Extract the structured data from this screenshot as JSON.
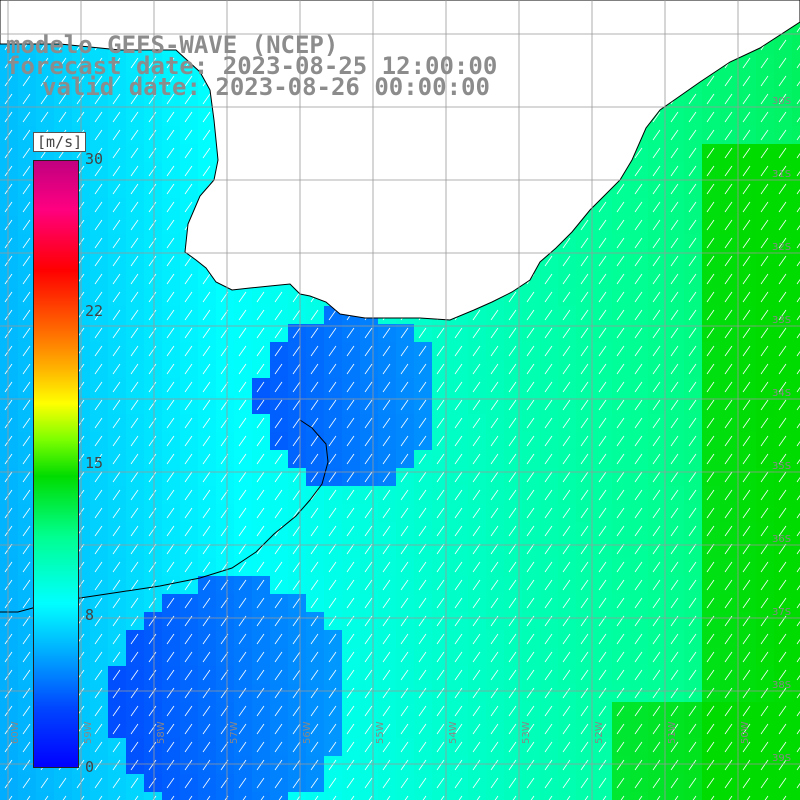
{
  "title": {
    "line1": "modelo GEFS-WAVE (NCEP)",
    "line2": "forecast date: 2023-08-25 12:00:00",
    "line3": "valid date: 2023-08-26 00:00:00"
  },
  "colorbar": {
    "unit": "[m/s]",
    "min": 0,
    "max": 30,
    "ticks": [
      "30",
      "22",
      "15",
      "8",
      "0"
    ],
    "tick_values": [
      30,
      22,
      15,
      8,
      0
    ],
    "colors": {
      "low": "#0000ff",
      "mid_low": "#00ffff",
      "mid": "#00dc00",
      "mid_high": "#ffff00",
      "high": "#ff0000",
      "max": "#c00080"
    }
  },
  "map": {
    "lat_labels": [
      "30S",
      "31S",
      "32S",
      "33S",
      "34S",
      "35S",
      "36S",
      "37S",
      "38S",
      "39S",
      "40S"
    ],
    "lon_labels": [
      "60W",
      "59W",
      "58W",
      "57W",
      "56W",
      "55W",
      "54W",
      "53W",
      "52W",
      "51W",
      "50W"
    ],
    "land_color": "#ffffff",
    "arrow_color": "#ffffff"
  }
}
